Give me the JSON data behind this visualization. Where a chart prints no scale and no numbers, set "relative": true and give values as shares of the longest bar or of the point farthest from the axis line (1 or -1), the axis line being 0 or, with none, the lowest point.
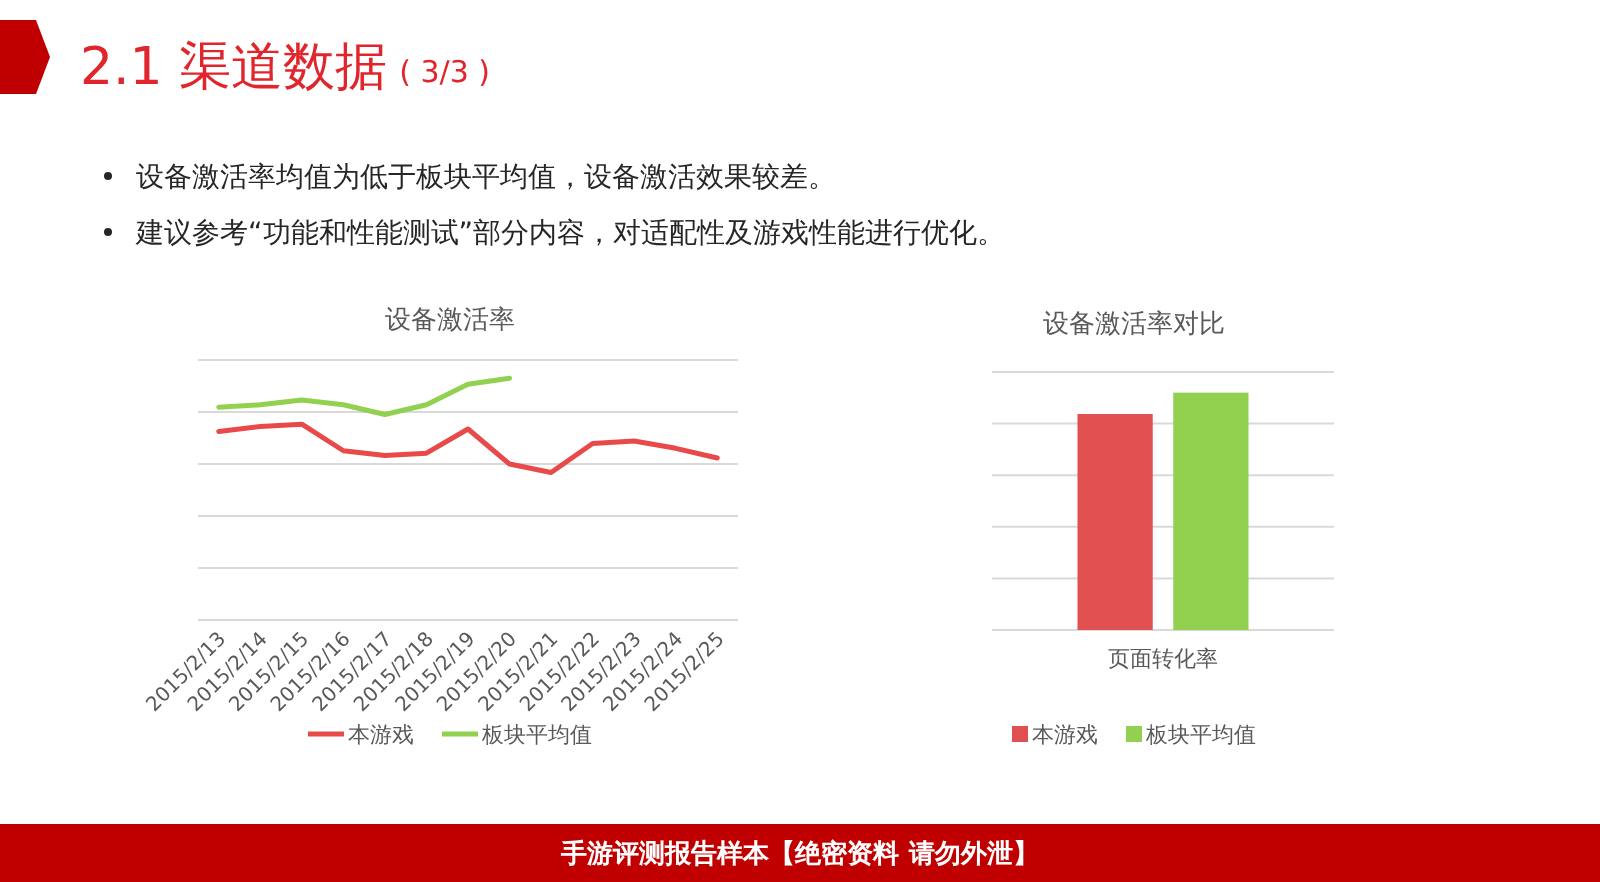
{
  "chart_data": [
    {
      "type": "other",
      "title": "2.1 渠道数据",
      "subtitle": "( 3/3 )",
      "annotations": [
        "设备激活率均值为低于板块平均值，设备激活效果较差。",
        "建议参考“功能和性能测试”部分内容，对适配性及游戏性能进行优化。"
      ]
    },
    {
      "type": "line",
      "title": "设备激活率",
      "categories": [
        "2015/2/13",
        "2015/2/14",
        "2015/2/15",
        "2015/2/16",
        "2015/2/17",
        "2015/2/18",
        "2015/2/19",
        "2015/2/20",
        "2015/2/21",
        "2015/2/22",
        "2015/2/23",
        "2015/2/24",
        "2015/2/25"
      ],
      "relative": true,
      "grid": "y",
      "legend": "bottom",
      "series": [
        {
          "name": "本游戏",
          "color": "#e84a4a",
          "values": [
            0.78,
            0.8,
            0.81,
            0.7,
            0.68,
            0.69,
            0.79,
            0.645,
            0.61,
            0.73,
            0.74,
            0.71,
            0.67
          ]
        },
        {
          "name": "板块平均值",
          "color": "#92d050",
          "values": [
            0.88,
            0.89,
            0.91,
            0.89,
            0.85,
            0.89,
            0.975,
            1,
            null,
            null,
            null,
            null,
            null
          ]
        }
      ]
    },
    {
      "type": "bar",
      "title": "设备激活率对比",
      "categories": [
        "页面转化率"
      ],
      "relative": true,
      "grid": "y",
      "legend": "bottom",
      "series": [
        {
          "name": "本游戏",
          "color": "#e05050",
          "values": [
            0.91
          ]
        },
        {
          "name": "板块平均值",
          "color": "#92d050",
          "values": [
            1
          ]
        }
      ]
    },
    {
      "type": "other",
      "annotations": [
        "手游评测报告样本【绝密资料 请勿外泄】"
      ]
    }
  ]
}
